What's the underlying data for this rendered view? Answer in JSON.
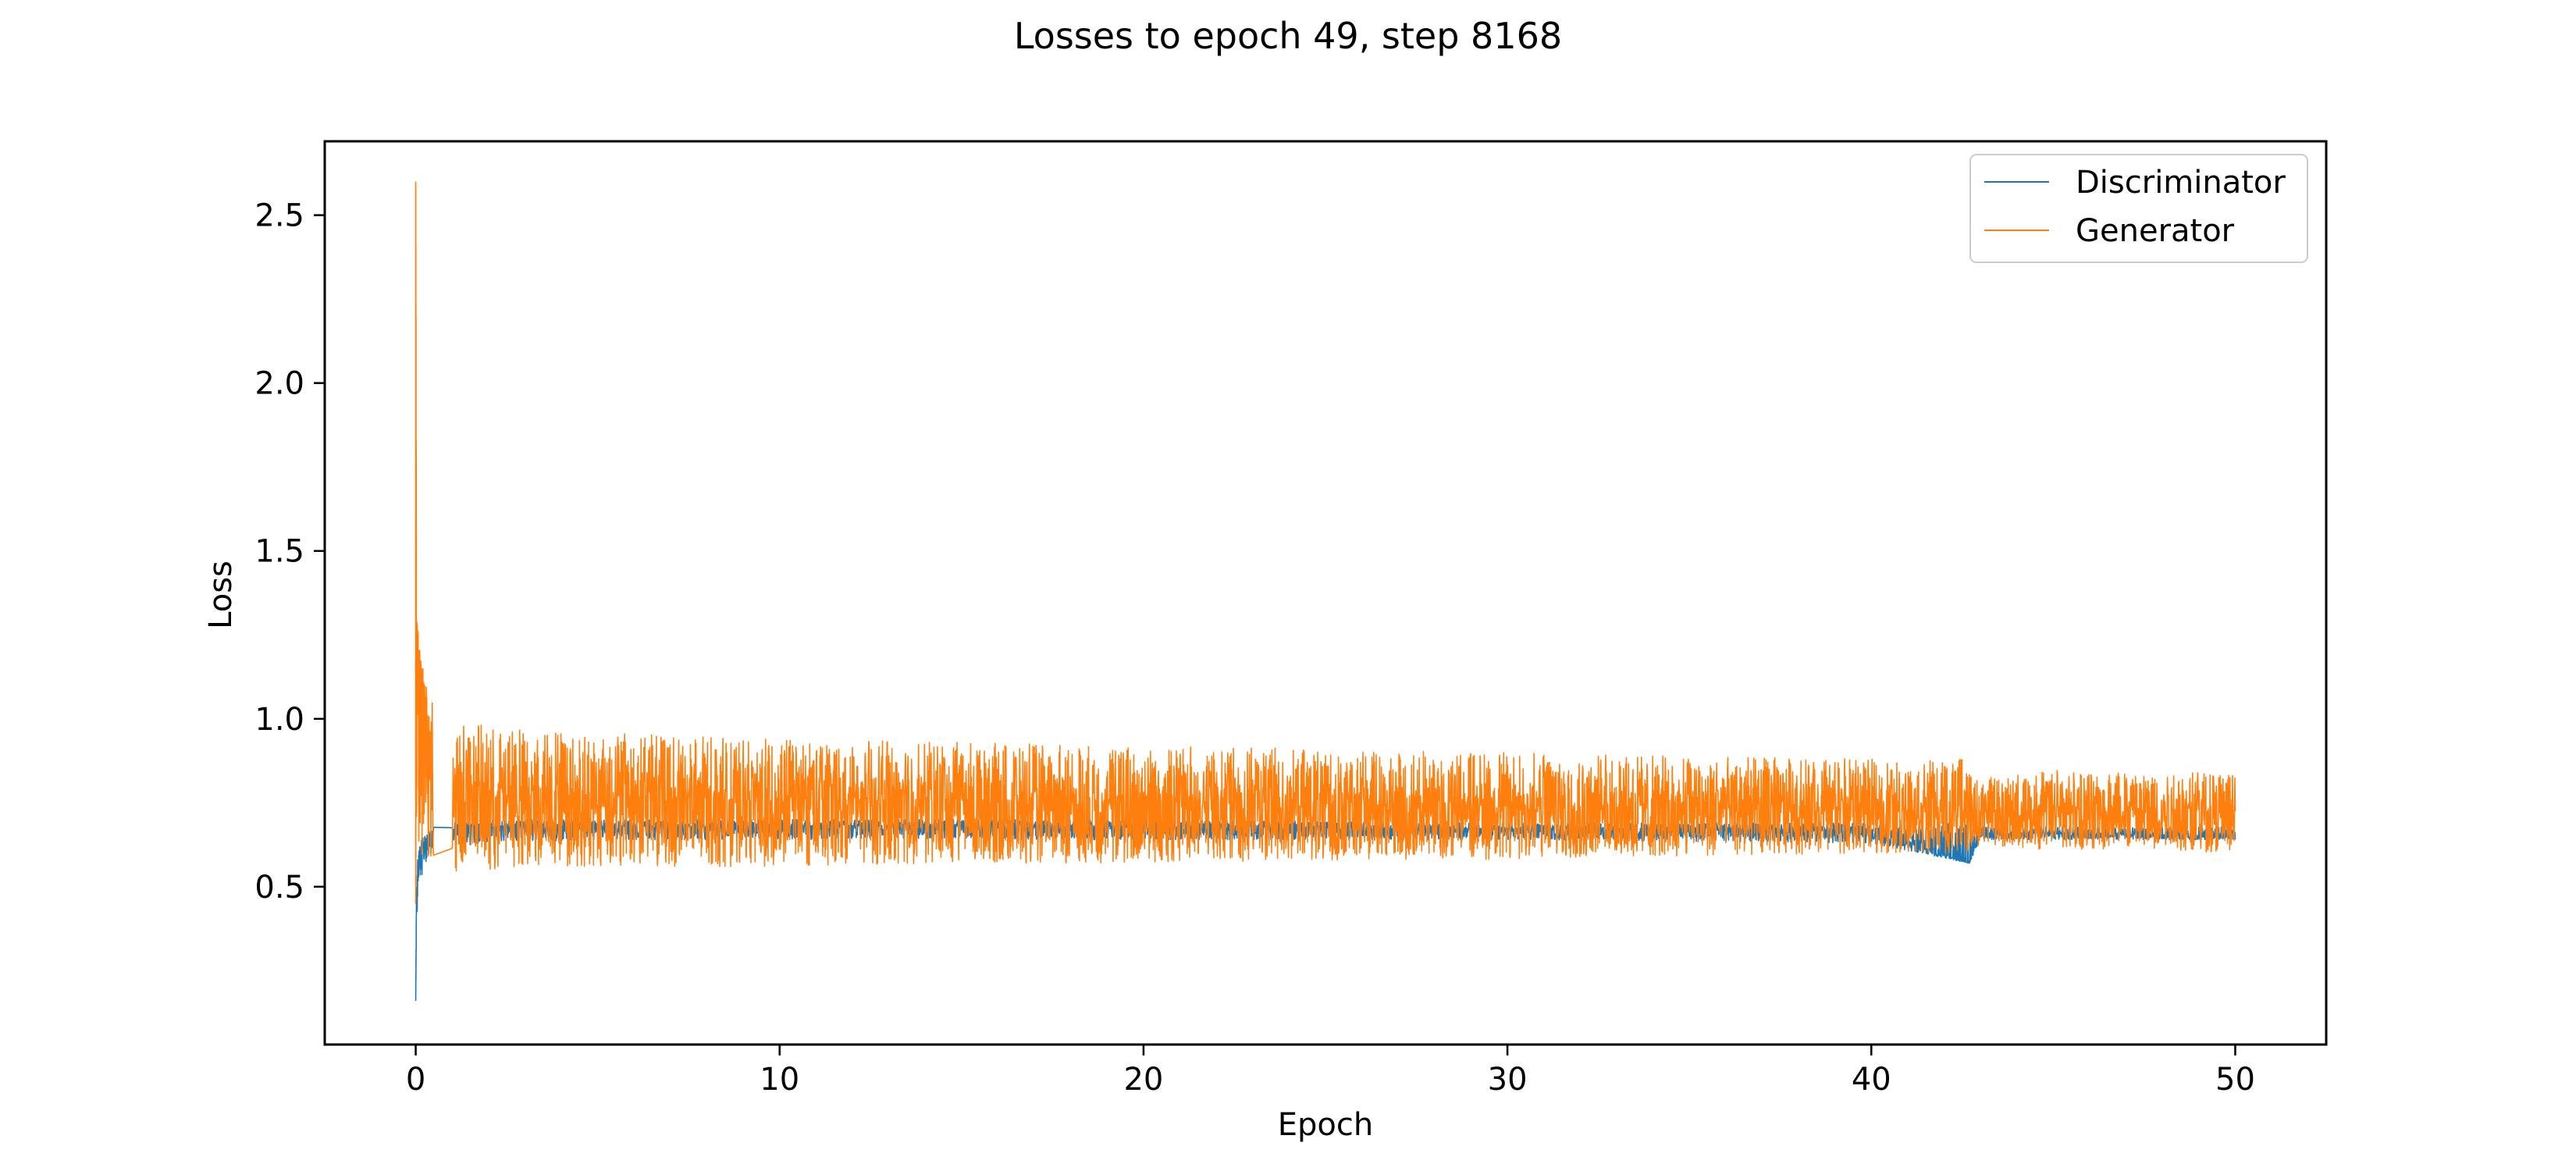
{
  "chart_data": {
    "type": "line",
    "title": "Losses to epoch 49, step 8168",
    "xlabel": "Epoch",
    "ylabel": "Loss",
    "xlim": [
      -2.5,
      52.5
    ],
    "ylim": [
      0.03,
      2.72
    ],
    "xticks": [
      0,
      10,
      20,
      30,
      40,
      50
    ],
    "yticks": [
      0.5,
      1.0,
      1.5,
      2.0,
      2.5
    ],
    "xtick_labels": [
      "0",
      "10",
      "20",
      "30",
      "40",
      "50"
    ],
    "ytick_labels": [
      "0.5",
      "1.0",
      "1.5",
      "2.0",
      "2.5"
    ],
    "grid": false,
    "legend_position": "top-right",
    "series": [
      {
        "name": "Discriminator",
        "color": "#1f77b4",
        "x": [
          0,
          0.02,
          0.05,
          0.1,
          0.2,
          0.3,
          0.5,
          1,
          2,
          5,
          10,
          20,
          30,
          40,
          42.7,
          43,
          45,
          50
        ],
        "y": [
          0.16,
          0.45,
          0.55,
          0.6,
          0.62,
          0.64,
          0.66,
          0.67,
          0.68,
          0.68,
          0.68,
          0.68,
          0.67,
          0.67,
          0.57,
          0.66,
          0.66,
          0.65
        ],
        "band_low": [
          0.16,
          0.38,
          0.45,
          0.5,
          0.55,
          0.58,
          0.6,
          0.62,
          0.63,
          0.64,
          0.64,
          0.64,
          0.64,
          0.63,
          0.57,
          0.64,
          0.64,
          0.64
        ],
        "band_high": [
          0.16,
          0.5,
          0.58,
          0.62,
          0.65,
          0.66,
          0.68,
          0.69,
          0.7,
          0.7,
          0.7,
          0.7,
          0.69,
          0.69,
          0.69,
          0.68,
          0.68,
          0.68
        ]
      },
      {
        "name": "Generator",
        "color": "#ff7f0e",
        "x": [
          0,
          0.02,
          0.05,
          0.1,
          0.2,
          0.5,
          1,
          2,
          5,
          10,
          15,
          20,
          25,
          30,
          35,
          40,
          42.6,
          42.8,
          45,
          48,
          50
        ],
        "y": [
          2.6,
          1.3,
          1.2,
          1.15,
          1.05,
          0.85,
          0.8,
          0.78,
          0.77,
          0.76,
          0.75,
          0.75,
          0.75,
          0.74,
          0.74,
          0.74,
          0.74,
          0.72,
          0.73,
          0.73,
          0.73
        ],
        "band_low": [
          0.45,
          0.55,
          0.56,
          0.57,
          0.58,
          0.55,
          0.54,
          0.55,
          0.56,
          0.56,
          0.57,
          0.57,
          0.58,
          0.58,
          0.59,
          0.6,
          0.6,
          0.62,
          0.61,
          0.61,
          0.6
        ],
        "band_high": [
          2.6,
          1.3,
          1.28,
          1.22,
          1.15,
          1.05,
          1.0,
          0.98,
          0.96,
          0.94,
          0.93,
          0.92,
          0.91,
          0.9,
          0.89,
          0.88,
          0.88,
          0.82,
          0.85,
          0.85,
          0.84
        ]
      }
    ]
  }
}
